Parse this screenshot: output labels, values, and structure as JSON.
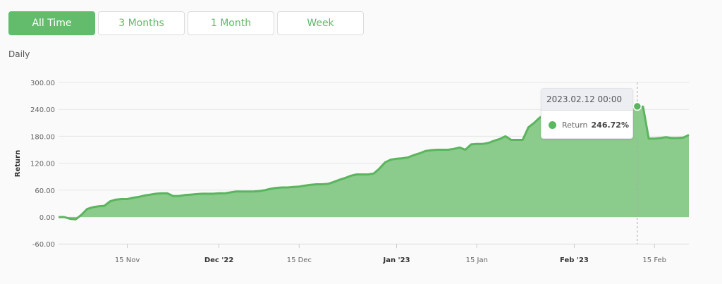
{
  "range_buttons": [
    {
      "label": "All Time",
      "active": true
    },
    {
      "label": "3 Months",
      "active": false
    },
    {
      "label": "1 Month",
      "active": false
    },
    {
      "label": "Week",
      "active": false
    }
  ],
  "frequency_label": "Daily",
  "colors": {
    "line": "#5ab55e",
    "fill": "#8bcb8b",
    "accent": "#63bb6c"
  },
  "tooltip": {
    "date": "2023.02.12 00:00",
    "series": "Return",
    "value": "246.72%"
  },
  "chart_data": {
    "type": "area",
    "ylabel": "Return",
    "ylim": [
      -60,
      300
    ],
    "yticks": [
      -60,
      0,
      60,
      120,
      180,
      240,
      300
    ],
    "ytick_labels": [
      "-60.00",
      "0.00",
      "60.00",
      "120.00",
      "180.00",
      "240.00",
      "300.00"
    ],
    "xlim": [
      "2022-11-03",
      "2023-02-21"
    ],
    "xticks": [
      {
        "date": "2022-11-15",
        "label": "15 Nov",
        "bold": false
      },
      {
        "date": "2022-12-01",
        "label": "Dec '22",
        "bold": true
      },
      {
        "date": "2022-12-15",
        "label": "15 Dec",
        "bold": false
      },
      {
        "date": "2023-01-01",
        "label": "Jan '23",
        "bold": true
      },
      {
        "date": "2023-01-15",
        "label": "15 Jan",
        "bold": false
      },
      {
        "date": "2023-02-01",
        "label": "Feb '23",
        "bold": true
      },
      {
        "date": "2023-02-15",
        "label": "15 Feb",
        "bold": false
      }
    ],
    "grid": true,
    "highlight": {
      "date": "2023-02-12",
      "value": 246.72
    },
    "start_date": "2022-11-03",
    "values": [
      0,
      0,
      -4,
      -5,
      5,
      18,
      22,
      24,
      25,
      35,
      39,
      40,
      40,
      43,
      45,
      48,
      50,
      52,
      53,
      53,
      47,
      47,
      49,
      50,
      51,
      52,
      52,
      52,
      53,
      53,
      55,
      57,
      57,
      57,
      57,
      58,
      60,
      63,
      65,
      66,
      66,
      67,
      68,
      70,
      72,
      73,
      73,
      74,
      78,
      83,
      87,
      92,
      95,
      95,
      95,
      97,
      108,
      122,
      128,
      130,
      131,
      133,
      138,
      142,
      147,
      149,
      150,
      150,
      150,
      152,
      155,
      150,
      162,
      163,
      163,
      165,
      170,
      174,
      180,
      172,
      172,
      172,
      200,
      210,
      222,
      228,
      230,
      232,
      233,
      235,
      235,
      235,
      234,
      232,
      233,
      235,
      236,
      238,
      240,
      243,
      245,
      246.72,
      246,
      175,
      175,
      176,
      178,
      176,
      176,
      177,
      183
    ]
  }
}
